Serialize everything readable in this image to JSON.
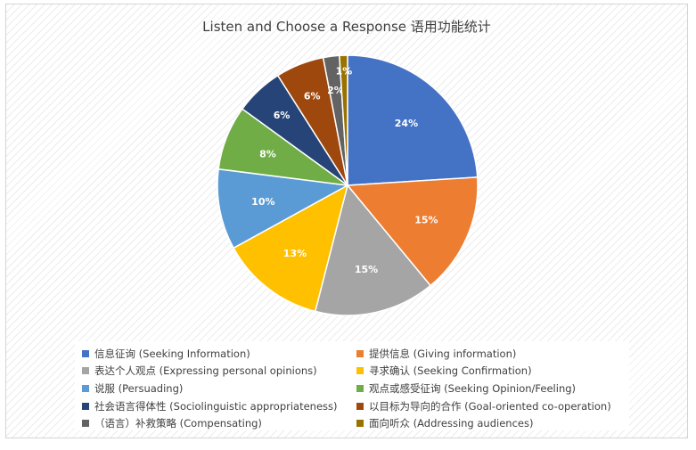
{
  "chart_data": {
    "type": "pie",
    "title": "Listen and Choose a Response 语用功能统计",
    "slices": [
      {
        "label": "信息征询 (Seeking Information)",
        "value": 24,
        "display": "24%",
        "color": "#4472C4"
      },
      {
        "label": "提供信息 (Giving information)",
        "value": 15,
        "display": "15%",
        "color": "#ED7D31"
      },
      {
        "label": "表达个人观点 (Expressing personal opinions)",
        "value": 15,
        "display": "15%",
        "color": "#A5A5A5"
      },
      {
        "label": "寻求确认 (Seeking Confirmation)",
        "value": 13,
        "display": "13%",
        "color": "#FFC000"
      },
      {
        "label": "说服 (Persuading)",
        "value": 10,
        "display": "10%",
        "color": "#5B9BD5"
      },
      {
        "label": "观点或感受征询 (Seeking Opinion/Feeling)",
        "value": 8,
        "display": "8%",
        "color": "#70AD47"
      },
      {
        "label": "社会语言得体性 (Sociolinguistic appropriateness)",
        "value": 6,
        "display": "6%",
        "color": "#264478"
      },
      {
        "label": "以目标为导向的合作 (Goal-oriented co-operation)",
        "value": 6,
        "display": "6%",
        "color": "#9E480E"
      },
      {
        "label": "（语言）补救策略 (Compensating)",
        "value": 2,
        "display": "2%",
        "color": "#636363"
      },
      {
        "label": "面向听众 (Addressing audiences)",
        "value": 1,
        "display": "1%",
        "color": "#997300"
      }
    ],
    "legend_position": "bottom",
    "start_angle": "12 o'clock",
    "direction": "clockwise"
  }
}
